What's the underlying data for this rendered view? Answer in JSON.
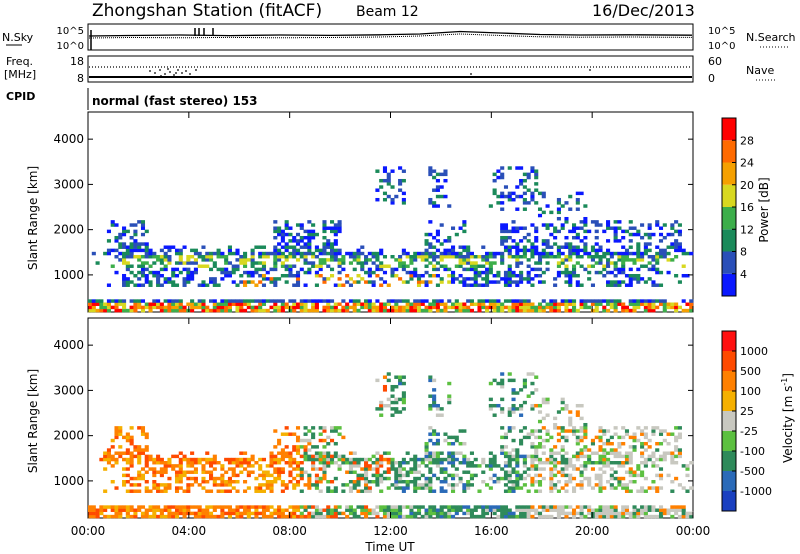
{
  "header": {
    "title": "Zhongshan Station (fitACF)",
    "beam": "Beam 12",
    "date": "16/Dec/2013"
  },
  "top_panel": {
    "left_label": "N.Sky",
    "left_ticks": [
      "10^5",
      "10^0"
    ],
    "right_ticks": [
      "10^5",
      "10^0"
    ],
    "right_label": "N.Search"
  },
  "freq_panel": {
    "left_label_1": "Freq.",
    "left_label_2": "[MHz]",
    "left_ticks": [
      "18",
      "8"
    ],
    "right_ticks": [
      "60",
      "0"
    ],
    "right_label": "Nave"
  },
  "cpid": {
    "label": "CPID",
    "value": "normal (fast stereo) 153"
  },
  "x_axis": {
    "label": "Time UT",
    "ticks": [
      "00:00",
      "04:00",
      "08:00",
      "12:00",
      "16:00",
      "20:00",
      "00:00"
    ]
  },
  "chart_data": [
    {
      "type": "heatmap",
      "title": "",
      "ylabel": "Slant Range [km]",
      "xlabel": "Time UT",
      "ylim": [
        180,
        4600
      ],
      "yticks": [
        "1000",
        "2000",
        "3000",
        "4000"
      ],
      "colorbar": {
        "label": "Power [dB]",
        "ticks": [
          "4",
          "8",
          "12",
          "16",
          "20",
          "24",
          "28"
        ],
        "colors": [
          "#0a18ff",
          "#2a4fb8",
          "#1a8a5a",
          "#3cae4a",
          "#d8d820",
          "#f5a000",
          "#ff6a00",
          "#ff0000"
        ]
      }
    },
    {
      "type": "heatmap",
      "title": "",
      "ylabel": "Slant Range [km]",
      "xlabel": "Time UT",
      "ylim": [
        180,
        4600
      ],
      "yticks": [
        "1000",
        "2000",
        "3000",
        "4000"
      ],
      "colorbar": {
        "label": "Velocity [m s",
        "label_exp": "-1",
        "label_end": "]",
        "ticks": [
          "1000",
          "500",
          "100",
          "25",
          "-25",
          "-100",
          "-500",
          "-1000"
        ],
        "colors": [
          "#1a40c0",
          "#2a6ab8",
          "#2e8a5a",
          "#5cc040",
          "#c8c8c0",
          "#f5b000",
          "#ff8000",
          "#ff4a00",
          "#ff1010"
        ]
      }
    }
  ]
}
